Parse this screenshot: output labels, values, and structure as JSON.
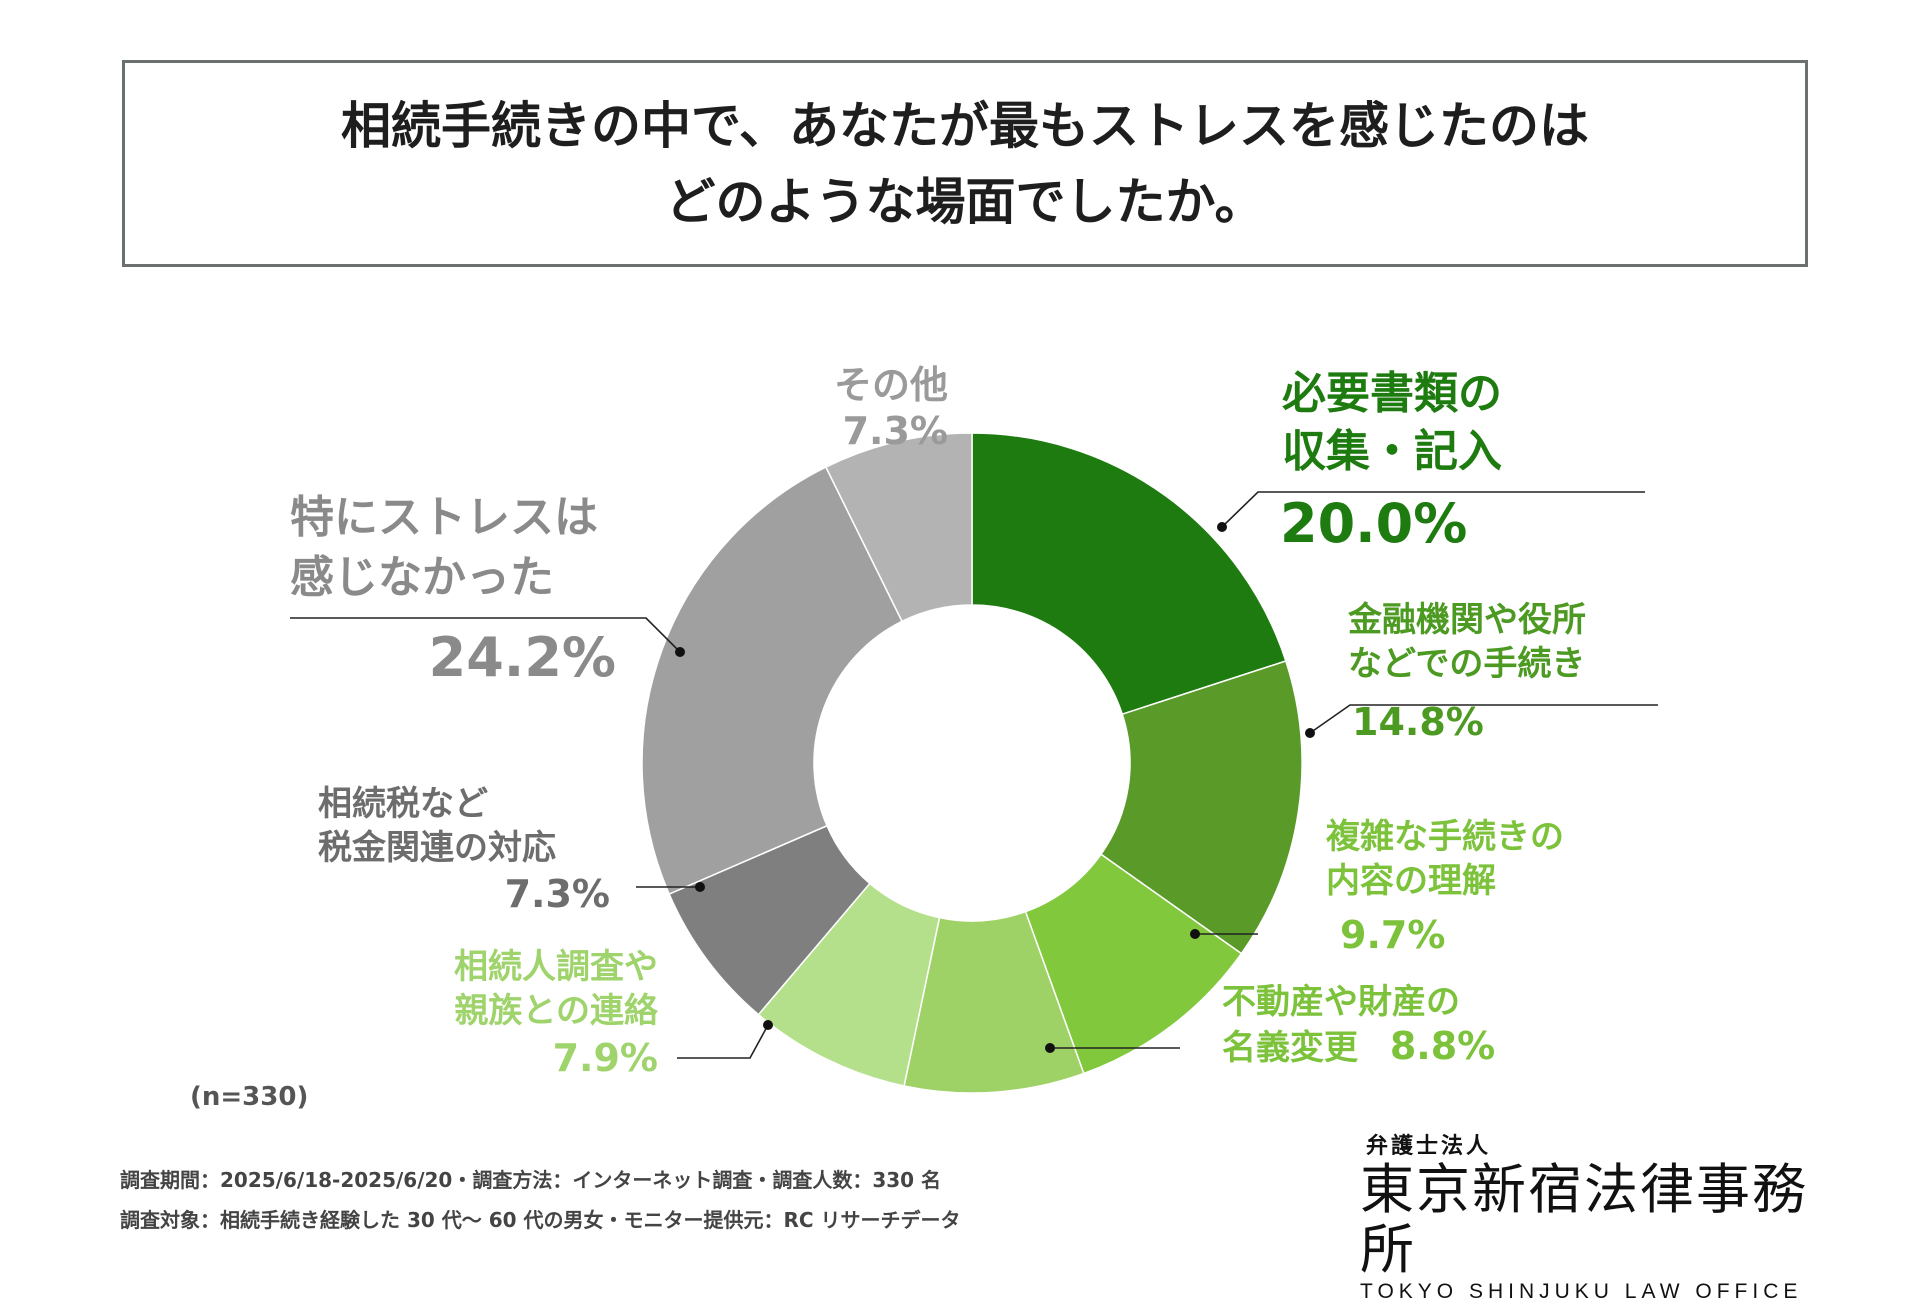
{
  "title": {
    "line1": "相続手続きの中で、あなたが最もストレスを感じたのは",
    "line2": "どのような場面でしたか。"
  },
  "chart_data": {
    "type": "pie",
    "donut": true,
    "n_label": "(n=330)",
    "slices": [
      {
        "label_lines": [
          "必要書類の",
          "収集・記入"
        ],
        "value": 20.0,
        "value_label": "20.0%",
        "color": "#1e7b0f",
        "label_color": "#1e7b0f"
      },
      {
        "label_lines": [
          "金融機関や役所",
          "などでの手続き"
        ],
        "value": 14.8,
        "value_label": "14.8%",
        "color": "#599a29",
        "label_color": "#4d9a23"
      },
      {
        "label_lines": [
          "複雑な手続きの",
          "内容の理解"
        ],
        "value": 9.7,
        "value_label": "9.7%",
        "color": "#82c83c",
        "label_color": "#7cc23a"
      },
      {
        "label_lines": [
          "不動産や財産の",
          "名義変更"
        ],
        "value": 8.8,
        "value_label": "8.8%",
        "color": "#9ed266",
        "label_color": "#7cc23a"
      },
      {
        "label_lines": [
          "相続人調査や",
          "親族との連絡"
        ],
        "value": 7.9,
        "value_label": "7.9%",
        "color": "#b5e08b",
        "label_color": "#9fd36c"
      },
      {
        "label_lines": [
          "相続税など",
          "税金関連の対応"
        ],
        "value": 7.3,
        "value_label": "7.3%",
        "color": "#7f7f7f",
        "label_color": "#6d6d6d"
      },
      {
        "label_lines": [
          "特にストレスは",
          "感じなかった"
        ],
        "value": 24.2,
        "value_label": "24.2%",
        "color": "#a0a0a0",
        "label_color": "#8a8a8a"
      },
      {
        "label_lines": [
          "その他"
        ],
        "value": 7.3,
        "value_label": "7.3%",
        "color": "#b3b3b3",
        "label_color": "#9a9a9a"
      }
    ]
  },
  "footer": {
    "line1": "調査期間：2025/6/18-2025/6/20・調査方法：インターネット調査・調査人数：330 名",
    "line2": "調査対象：相続手続き経験した 30 代～ 60 代の男女・モニター提供元：RC リサーチデータ"
  },
  "logo": {
    "line1": "弁護士法人",
    "line2": "東京新宿法律事務所",
    "line3": "TOKYO SHINJUKU LAW OFFICE"
  }
}
